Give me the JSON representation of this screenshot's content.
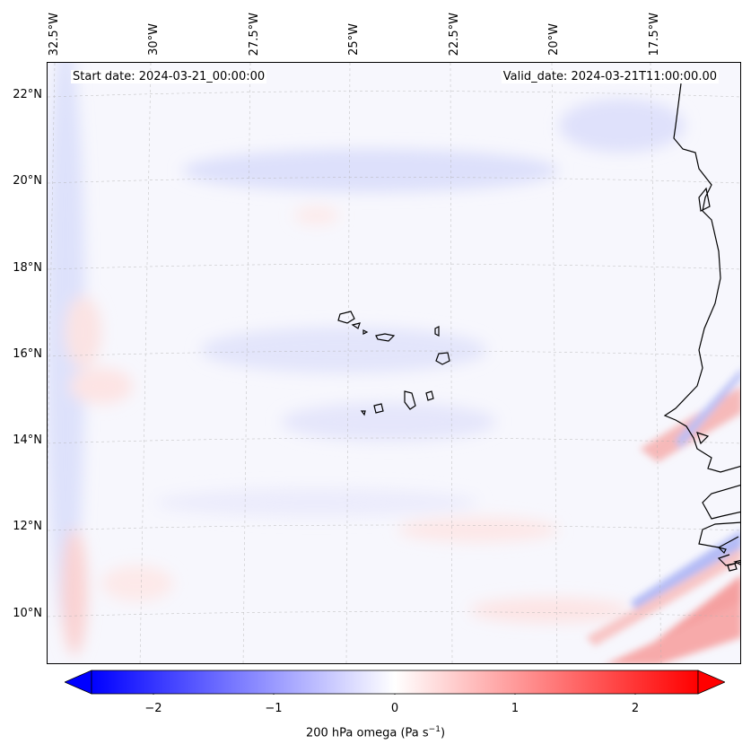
{
  "map": {
    "variable_label": "200 hPa omega (Pa s",
    "variable_unit_exp": "−1",
    "variable_label_end": ")",
    "start_date": "Start date: 2024-03-21_00:00:00",
    "valid_date": "Valid_date: 2024-03-21T11:00:00.00",
    "lat_labels": [
      "22°N",
      "20°N",
      "18°N",
      "16°N",
      "14°N",
      "12°N",
      "10°N"
    ],
    "lon_labels": [
      "32.5°W",
      "30°W",
      "27.5°W",
      "25°W",
      "22.5°W",
      "20°W",
      "17.5°W"
    ],
    "colorbar_ticks": [
      "−2",
      "−1",
      "0",
      "1",
      "2"
    ],
    "colorbar_range": [
      -2.7,
      2.7
    ],
    "colors": {
      "negative": "#0000ff",
      "neutral": "#ffffff",
      "positive": "#ff0000",
      "coast": "#000000",
      "grid": "#b0b0b0"
    }
  }
}
